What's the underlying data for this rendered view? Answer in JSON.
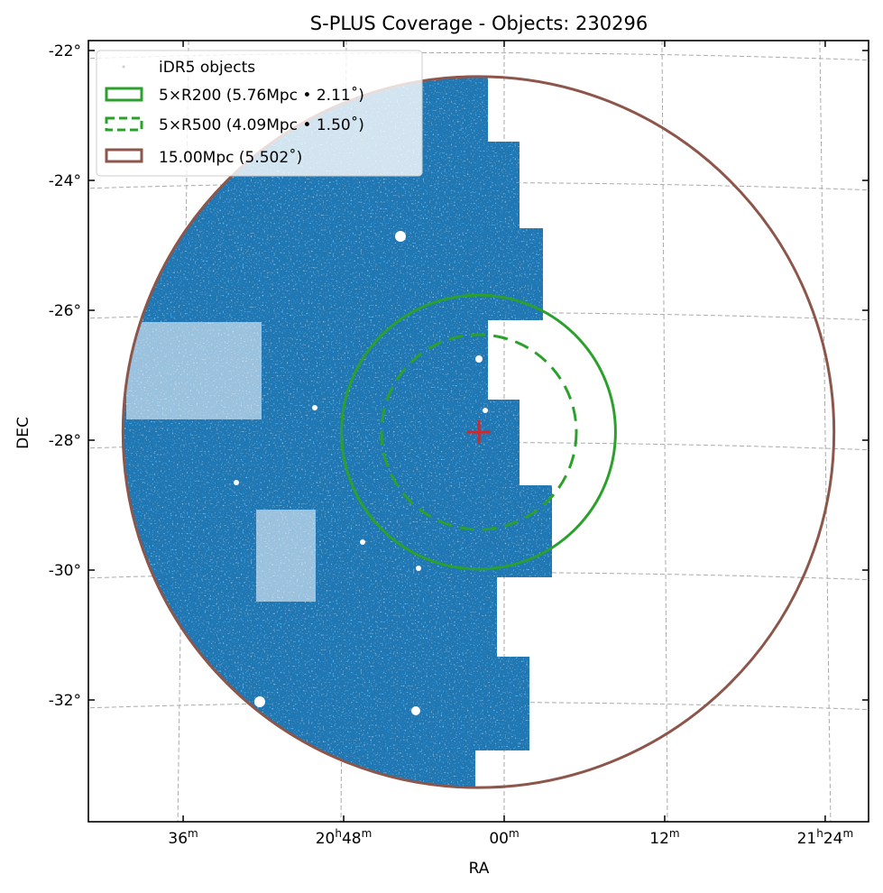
{
  "chart_data": {
    "type": "scatter",
    "title": "S-PLUS Coverage - Objects: 230296",
    "xlabel": "RA",
    "ylabel": "DEC",
    "object_count": 230296,
    "center": {
      "ra_hms": "21h02m",
      "dec_deg": -27.88
    },
    "dec_ticks": [
      {
        "value": -22,
        "label": "-22°"
      },
      {
        "value": -24,
        "label": "-24°"
      },
      {
        "value": -26,
        "label": "-26°"
      },
      {
        "value": -28,
        "label": "-28°"
      },
      {
        "value": -30,
        "label": "-30°"
      },
      {
        "value": -32,
        "label": "-32°"
      }
    ],
    "ra_ticks": [
      {
        "minutes_offset": -24,
        "h": "21",
        "hsup": "h",
        "m": "24",
        "msup": "m"
      },
      {
        "minutes_offset": -12,
        "h": "",
        "hsup": "",
        "m": "12",
        "msup": "m"
      },
      {
        "minutes_offset": 0,
        "h": "",
        "hsup": "",
        "m": "00",
        "msup": "m"
      },
      {
        "minutes_offset": 12,
        "h": "20",
        "hsup": "h",
        "m": "48",
        "msup": "m"
      },
      {
        "minutes_offset": 24,
        "h": "",
        "hsup": "",
        "m": "36",
        "msup": "m"
      }
    ],
    "circles": [
      {
        "name": "5×R200",
        "radius_mpc": 5.76,
        "radius_deg": 2.11,
        "color": "#2ca02c",
        "style": "solid"
      },
      {
        "name": "5×R500",
        "radius_mpc": 4.09,
        "radius_deg": 1.5,
        "color": "#2ca02c",
        "style": "dashed"
      },
      {
        "name": "15.00Mpc",
        "radius_mpc": 15.0,
        "radius_deg": 5.502,
        "color": "#8c564b",
        "style": "solid"
      }
    ],
    "legend": {
      "position": "top-left",
      "entries": [
        "iDR5 objects",
        "5×R200 (5.76Mpc • 2.11˚)",
        "5×R500 (4.09Mpc • 1.50˚)",
        "15.00Mpc (5.502˚)"
      ]
    },
    "colors": {
      "objects": "#1f77b4",
      "center_marker": "#d62728"
    },
    "grid": true
  }
}
